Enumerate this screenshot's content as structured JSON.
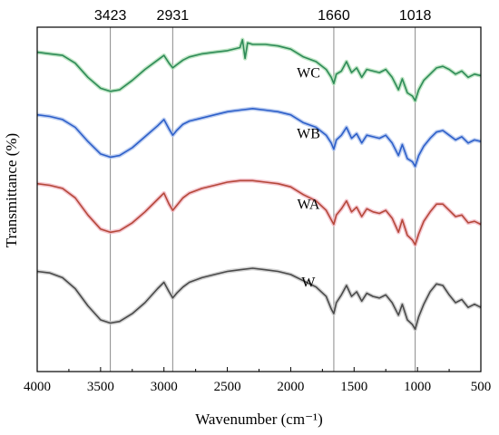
{
  "chart_data": {
    "type": "line",
    "title": "",
    "xlabel": "Wavenumber (cm⁻¹)",
    "ylabel": "Transmittance (%)",
    "xlim": [
      4000,
      500
    ],
    "x_reversed": true,
    "ylim": [
      0,
      11
    ],
    "y_ticks_shown": false,
    "grid": false,
    "x_ticks": [
      4000,
      3500,
      3000,
      2500,
      2000,
      1500,
      1000,
      500
    ],
    "peak_markers": [
      {
        "x": 3423,
        "label": "3423"
      },
      {
        "x": 2931,
        "label": "2931"
      },
      {
        "x": 1660,
        "label": "1660"
      },
      {
        "x": 1018,
        "label": "1018"
      }
    ],
    "series": [
      {
        "name": "WC",
        "label_x": 1860,
        "label_y": 9.4,
        "color": "#2e8b57",
        "halo": "#b0e0b8",
        "points": [
          [
            4000,
            10.2
          ],
          [
            3900,
            10.15
          ],
          [
            3800,
            10.1
          ],
          [
            3700,
            9.85
          ],
          [
            3600,
            9.4
          ],
          [
            3500,
            9.05
          ],
          [
            3423,
            8.95
          ],
          [
            3350,
            9.0
          ],
          [
            3250,
            9.3
          ],
          [
            3150,
            9.65
          ],
          [
            3050,
            9.95
          ],
          [
            3000,
            10.1
          ],
          [
            2960,
            9.85
          ],
          [
            2931,
            9.7
          ],
          [
            2900,
            9.8
          ],
          [
            2850,
            9.95
          ],
          [
            2800,
            10.05
          ],
          [
            2700,
            10.15
          ],
          [
            2600,
            10.2
          ],
          [
            2500,
            10.25
          ],
          [
            2400,
            10.35
          ],
          [
            2380,
            10.6
          ],
          [
            2360,
            10.0
          ],
          [
            2340,
            10.5
          ],
          [
            2300,
            10.45
          ],
          [
            2200,
            10.45
          ],
          [
            2100,
            10.4
          ],
          [
            2000,
            10.3
          ],
          [
            1900,
            10.05
          ],
          [
            1800,
            9.9
          ],
          [
            1720,
            9.65
          ],
          [
            1680,
            9.4
          ],
          [
            1660,
            9.2
          ],
          [
            1640,
            9.5
          ],
          [
            1600,
            9.6
          ],
          [
            1560,
            9.9
          ],
          [
            1520,
            9.55
          ],
          [
            1480,
            9.7
          ],
          [
            1440,
            9.4
          ],
          [
            1400,
            9.65
          ],
          [
            1350,
            9.6
          ],
          [
            1300,
            9.55
          ],
          [
            1250,
            9.65
          ],
          [
            1200,
            9.4
          ],
          [
            1150,
            9.0
          ],
          [
            1120,
            9.35
          ],
          [
            1080,
            8.9
          ],
          [
            1040,
            8.8
          ],
          [
            1018,
            8.65
          ],
          [
            990,
            9.0
          ],
          [
            950,
            9.3
          ],
          [
            900,
            9.5
          ],
          [
            850,
            9.7
          ],
          [
            800,
            9.75
          ],
          [
            750,
            9.65
          ],
          [
            700,
            9.5
          ],
          [
            650,
            9.6
          ],
          [
            600,
            9.4
          ],
          [
            550,
            9.5
          ],
          [
            500,
            9.45
          ]
        ]
      },
      {
        "name": "WB",
        "label_x": 1860,
        "label_y": 7.45,
        "color": "#2d5fc9",
        "halo": "#aec3ee",
        "points": [
          [
            4000,
            8.2
          ],
          [
            3900,
            8.15
          ],
          [
            3800,
            8.05
          ],
          [
            3700,
            7.8
          ],
          [
            3600,
            7.35
          ],
          [
            3500,
            6.95
          ],
          [
            3423,
            6.85
          ],
          [
            3350,
            6.9
          ],
          [
            3250,
            7.15
          ],
          [
            3150,
            7.5
          ],
          [
            3050,
            7.85
          ],
          [
            3000,
            8.05
          ],
          [
            2960,
            7.75
          ],
          [
            2931,
            7.55
          ],
          [
            2900,
            7.7
          ],
          [
            2850,
            7.9
          ],
          [
            2800,
            8.0
          ],
          [
            2700,
            8.1
          ],
          [
            2600,
            8.2
          ],
          [
            2500,
            8.3
          ],
          [
            2400,
            8.35
          ],
          [
            2300,
            8.4
          ],
          [
            2200,
            8.35
          ],
          [
            2100,
            8.3
          ],
          [
            2000,
            8.2
          ],
          [
            1900,
            7.95
          ],
          [
            1800,
            7.8
          ],
          [
            1720,
            7.55
          ],
          [
            1680,
            7.3
          ],
          [
            1660,
            7.1
          ],
          [
            1640,
            7.4
          ],
          [
            1600,
            7.55
          ],
          [
            1560,
            7.8
          ],
          [
            1520,
            7.45
          ],
          [
            1480,
            7.6
          ],
          [
            1440,
            7.3
          ],
          [
            1400,
            7.55
          ],
          [
            1350,
            7.5
          ],
          [
            1300,
            7.45
          ],
          [
            1250,
            7.55
          ],
          [
            1200,
            7.3
          ],
          [
            1150,
            6.9
          ],
          [
            1120,
            7.25
          ],
          [
            1080,
            6.8
          ],
          [
            1040,
            6.7
          ],
          [
            1018,
            6.55
          ],
          [
            990,
            6.9
          ],
          [
            950,
            7.2
          ],
          [
            900,
            7.45
          ],
          [
            850,
            7.65
          ],
          [
            800,
            7.7
          ],
          [
            750,
            7.55
          ],
          [
            700,
            7.4
          ],
          [
            650,
            7.5
          ],
          [
            600,
            7.3
          ],
          [
            550,
            7.4
          ],
          [
            500,
            7.35
          ]
        ]
      },
      {
        "name": "WA",
        "label_x": 1860,
        "label_y": 5.2,
        "color": "#b5483a",
        "halo": "#f1b6c2",
        "points": [
          [
            4000,
            6.0
          ],
          [
            3900,
            5.95
          ],
          [
            3800,
            5.85
          ],
          [
            3700,
            5.55
          ],
          [
            3600,
            5.0
          ],
          [
            3500,
            4.55
          ],
          [
            3423,
            4.45
          ],
          [
            3350,
            4.5
          ],
          [
            3250,
            4.75
          ],
          [
            3150,
            5.1
          ],
          [
            3050,
            5.5
          ],
          [
            3000,
            5.7
          ],
          [
            2960,
            5.35
          ],
          [
            2931,
            5.15
          ],
          [
            2900,
            5.3
          ],
          [
            2850,
            5.55
          ],
          [
            2800,
            5.7
          ],
          [
            2700,
            5.85
          ],
          [
            2600,
            5.95
          ],
          [
            2500,
            6.05
          ],
          [
            2400,
            6.1
          ],
          [
            2300,
            6.1
          ],
          [
            2200,
            6.05
          ],
          [
            2100,
            6.0
          ],
          [
            2000,
            5.9
          ],
          [
            1900,
            5.65
          ],
          [
            1800,
            5.45
          ],
          [
            1720,
            5.15
          ],
          [
            1680,
            4.85
          ],
          [
            1660,
            4.7
          ],
          [
            1640,
            5.0
          ],
          [
            1600,
            5.2
          ],
          [
            1560,
            5.45
          ],
          [
            1520,
            5.1
          ],
          [
            1480,
            5.25
          ],
          [
            1440,
            4.95
          ],
          [
            1400,
            5.2
          ],
          [
            1350,
            5.1
          ],
          [
            1300,
            5.05
          ],
          [
            1250,
            5.15
          ],
          [
            1200,
            4.9
          ],
          [
            1150,
            4.45
          ],
          [
            1120,
            4.85
          ],
          [
            1080,
            4.35
          ],
          [
            1040,
            4.2
          ],
          [
            1018,
            4.05
          ],
          [
            990,
            4.4
          ],
          [
            950,
            4.8
          ],
          [
            900,
            5.1
          ],
          [
            850,
            5.35
          ],
          [
            800,
            5.35
          ],
          [
            750,
            5.15
          ],
          [
            700,
            4.95
          ],
          [
            650,
            5.0
          ],
          [
            600,
            4.75
          ],
          [
            550,
            4.8
          ],
          [
            500,
            4.7
          ]
        ]
      },
      {
        "name": "W",
        "label_x": 1860,
        "label_y": 2.7,
        "color": "#4a4a4a",
        "halo": "#c8c8c8",
        "points": [
          [
            4000,
            3.2
          ],
          [
            3900,
            3.15
          ],
          [
            3800,
            3.0
          ],
          [
            3700,
            2.65
          ],
          [
            3600,
            2.1
          ],
          [
            3500,
            1.65
          ],
          [
            3423,
            1.55
          ],
          [
            3350,
            1.6
          ],
          [
            3250,
            1.85
          ],
          [
            3150,
            2.2
          ],
          [
            3050,
            2.65
          ],
          [
            3000,
            2.85
          ],
          [
            2960,
            2.55
          ],
          [
            2931,
            2.35
          ],
          [
            2900,
            2.5
          ],
          [
            2850,
            2.7
          ],
          [
            2800,
            2.85
          ],
          [
            2700,
            3.0
          ],
          [
            2600,
            3.1
          ],
          [
            2500,
            3.2
          ],
          [
            2400,
            3.25
          ],
          [
            2300,
            3.3
          ],
          [
            2200,
            3.25
          ],
          [
            2100,
            3.2
          ],
          [
            2000,
            3.1
          ],
          [
            1900,
            2.9
          ],
          [
            1800,
            2.7
          ],
          [
            1720,
            2.4
          ],
          [
            1680,
            2.0
          ],
          [
            1660,
            1.85
          ],
          [
            1640,
            2.2
          ],
          [
            1600,
            2.45
          ],
          [
            1560,
            2.75
          ],
          [
            1520,
            2.4
          ],
          [
            1480,
            2.55
          ],
          [
            1440,
            2.25
          ],
          [
            1400,
            2.5
          ],
          [
            1350,
            2.4
          ],
          [
            1300,
            2.35
          ],
          [
            1250,
            2.45
          ],
          [
            1200,
            2.2
          ],
          [
            1150,
            1.8
          ],
          [
            1120,
            2.15
          ],
          [
            1080,
            1.65
          ],
          [
            1040,
            1.5
          ],
          [
            1018,
            1.35
          ],
          [
            990,
            1.75
          ],
          [
            950,
            2.15
          ],
          [
            900,
            2.55
          ],
          [
            850,
            2.8
          ],
          [
            800,
            2.75
          ],
          [
            750,
            2.45
          ],
          [
            700,
            2.2
          ],
          [
            650,
            2.3
          ],
          [
            600,
            2.05
          ],
          [
            550,
            2.15
          ],
          [
            500,
            2.05
          ]
        ]
      }
    ]
  }
}
